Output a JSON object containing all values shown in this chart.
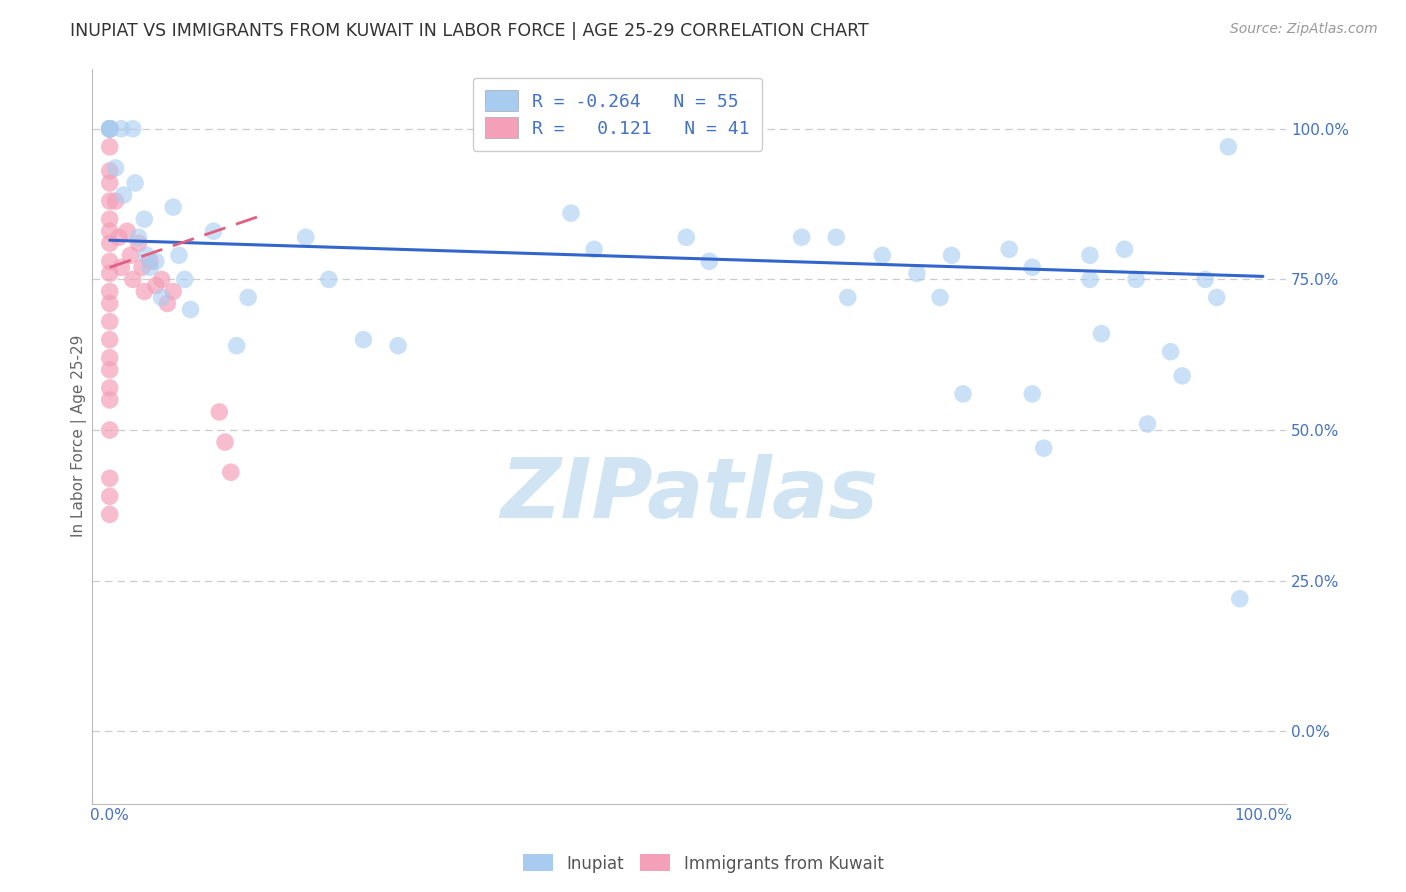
{
  "title": "INUPIAT VS IMMIGRANTS FROM KUWAIT IN LABOR FORCE | AGE 25-29 CORRELATION CHART",
  "source": "Source: ZipAtlas.com",
  "ylabel": "In Labor Force | Age 25-29",
  "watermark": "ZIPatlas",
  "legend_inupiat_R": -0.264,
  "legend_inupiat_N": 55,
  "legend_kuwait_R": 0.121,
  "legend_kuwait_N": 41,
  "blue_scatter": [
    [
      0.0,
      1.0
    ],
    [
      0.0,
      1.0
    ],
    [
      0.0,
      1.0
    ],
    [
      0.0,
      1.0
    ],
    [
      0.0,
      1.0
    ],
    [
      0.005,
      0.935
    ],
    [
      0.01,
      1.0
    ],
    [
      0.012,
      0.89
    ],
    [
      0.02,
      1.0
    ],
    [
      0.022,
      0.91
    ],
    [
      0.025,
      0.82
    ],
    [
      0.03,
      0.85
    ],
    [
      0.032,
      0.79
    ],
    [
      0.035,
      0.77
    ],
    [
      0.04,
      0.78
    ],
    [
      0.045,
      0.72
    ],
    [
      0.055,
      0.87
    ],
    [
      0.06,
      0.79
    ],
    [
      0.065,
      0.75
    ],
    [
      0.07,
      0.7
    ],
    [
      0.09,
      0.83
    ],
    [
      0.11,
      0.64
    ],
    [
      0.12,
      0.72
    ],
    [
      0.17,
      0.82
    ],
    [
      0.19,
      0.75
    ],
    [
      0.22,
      0.65
    ],
    [
      0.25,
      0.64
    ],
    [
      0.4,
      0.86
    ],
    [
      0.42,
      0.8
    ],
    [
      0.5,
      0.82
    ],
    [
      0.52,
      0.78
    ],
    [
      0.6,
      0.82
    ],
    [
      0.63,
      0.82
    ],
    [
      0.64,
      0.72
    ],
    [
      0.67,
      0.79
    ],
    [
      0.7,
      0.76
    ],
    [
      0.72,
      0.72
    ],
    [
      0.73,
      0.79
    ],
    [
      0.74,
      0.56
    ],
    [
      0.78,
      0.8
    ],
    [
      0.8,
      0.77
    ],
    [
      0.8,
      0.56
    ],
    [
      0.81,
      0.47
    ],
    [
      0.85,
      0.79
    ],
    [
      0.85,
      0.75
    ],
    [
      0.86,
      0.66
    ],
    [
      0.88,
      0.8
    ],
    [
      0.89,
      0.75
    ],
    [
      0.9,
      0.51
    ],
    [
      0.92,
      0.63
    ],
    [
      0.93,
      0.59
    ],
    [
      0.95,
      0.75
    ],
    [
      0.96,
      0.72
    ],
    [
      0.97,
      0.97
    ],
    [
      0.98,
      0.22
    ]
  ],
  "pink_scatter": [
    [
      0.0,
      1.0
    ],
    [
      0.0,
      1.0
    ],
    [
      0.0,
      1.0
    ],
    [
      0.0,
      0.97
    ],
    [
      0.0,
      0.93
    ],
    [
      0.0,
      0.91
    ],
    [
      0.0,
      0.88
    ],
    [
      0.0,
      0.85
    ],
    [
      0.0,
      0.83
    ],
    [
      0.0,
      0.81
    ],
    [
      0.0,
      0.78
    ],
    [
      0.0,
      0.76
    ],
    [
      0.0,
      0.73
    ],
    [
      0.0,
      0.71
    ],
    [
      0.0,
      0.68
    ],
    [
      0.0,
      0.65
    ],
    [
      0.0,
      0.62
    ],
    [
      0.0,
      0.6
    ],
    [
      0.0,
      0.57
    ],
    [
      0.0,
      0.55
    ],
    [
      0.0,
      0.5
    ],
    [
      0.005,
      0.88
    ],
    [
      0.008,
      0.82
    ],
    [
      0.01,
      0.77
    ],
    [
      0.015,
      0.83
    ],
    [
      0.018,
      0.79
    ],
    [
      0.02,
      0.75
    ],
    [
      0.025,
      0.81
    ],
    [
      0.028,
      0.77
    ],
    [
      0.03,
      0.73
    ],
    [
      0.035,
      0.78
    ],
    [
      0.04,
      0.74
    ],
    [
      0.045,
      0.75
    ],
    [
      0.05,
      0.71
    ],
    [
      0.055,
      0.73
    ],
    [
      0.095,
      0.53
    ],
    [
      0.1,
      0.48
    ],
    [
      0.105,
      0.43
    ],
    [
      0.0,
      0.42
    ],
    [
      0.0,
      0.39
    ],
    [
      0.0,
      0.36
    ]
  ],
  "blue_line_x": [
    0.0,
    1.0
  ],
  "blue_line_y": [
    0.815,
    0.755
  ],
  "pink_line_x": [
    0.0,
    0.13
  ],
  "pink_line_y": [
    0.77,
    0.855
  ],
  "yticks": [
    0.0,
    0.25,
    0.5,
    0.75,
    1.0
  ],
  "ytick_labels": [
    "0.0%",
    "25.0%",
    "50.0%",
    "75.0%",
    "100.0%"
  ],
  "xtick_labels": [
    "0.0%",
    "",
    "",
    "",
    "",
    "",
    "",
    "",
    "",
    "",
    "100.0%"
  ],
  "xlim": [
    -0.015,
    1.02
  ],
  "ylim": [
    -0.12,
    1.1
  ],
  "grid_color": "#cccccc",
  "bg_color": "#ffffff",
  "blue_color": "#a8ccf0",
  "pink_color": "#f4a0b8",
  "title_color": "#333333",
  "source_color": "#999999",
  "axis_label_color": "#666666",
  "tick_label_color": "#4472c4",
  "watermark_color": "#d0e4f4",
  "blue_line_color": "#3366cc",
  "pink_line_color": "#e06080"
}
